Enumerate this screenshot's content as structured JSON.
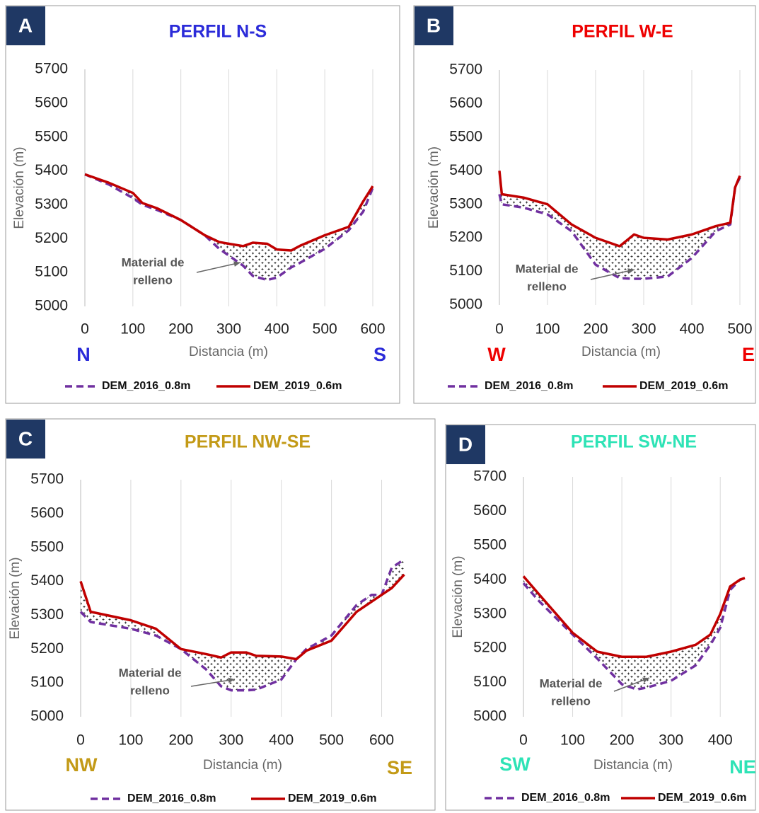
{
  "chart_data": [
    {
      "type": "line",
      "panel": "A",
      "title": "PERFIL N-S",
      "title_color": "#2b2bd9",
      "x_label": "Distancia (m)",
      "y_label": "Elevación (m)",
      "direction_labels": [
        "N",
        "S"
      ],
      "annotation": [
        "Material de",
        "relleno"
      ],
      "x": [
        0,
        50,
        100,
        120,
        150,
        200,
        250,
        280,
        300,
        330,
        350,
        380,
        400,
        430,
        450,
        500,
        550,
        580,
        600
      ],
      "series": [
        {
          "name": "DEM_2016_0.8m",
          "color": "#7030a0",
          "dashed": true,
          "values": [
            5390,
            5360,
            5320,
            5300,
            5285,
            5255,
            5210,
            5170,
            5150,
            5120,
            5090,
            5078,
            5085,
            5115,
            5130,
            5170,
            5225,
            5280,
            5350
          ]
        },
        {
          "name": "DEM_2019_0.6m",
          "color": "#c00000",
          "dashed": false,
          "values": [
            5390,
            5365,
            5335,
            5305,
            5290,
            5255,
            5210,
            5190,
            5185,
            5178,
            5188,
            5185,
            5168,
            5165,
            5180,
            5210,
            5235,
            5310,
            5355
          ]
        }
      ],
      "xlim": [
        0,
        600
      ],
      "xticks": [
        0,
        100,
        200,
        300,
        400,
        500,
        600
      ],
      "ylim": [
        5000,
        5700
      ],
      "yticks": [
        5000,
        5100,
        5200,
        5300,
        5400,
        5500,
        5600,
        5700
      ],
      "grid": "x"
    },
    {
      "type": "line",
      "panel": "B",
      "title": "PERFIL W-E",
      "title_color": "#ee0000",
      "x_label": "Distancia (m)",
      "y_label": "Elevación (m)",
      "direction_labels": [
        "W",
        "E"
      ],
      "annotation": [
        "Material de",
        "relleno"
      ],
      "x": [
        0,
        5,
        50,
        100,
        150,
        200,
        250,
        280,
        300,
        350,
        400,
        450,
        480,
        490,
        500
      ],
      "series": [
        {
          "name": "DEM_2016_0.8m",
          "color": "#7030a0",
          "dashed": true,
          "values": [
            5330,
            5300,
            5290,
            5270,
            5220,
            5120,
            5080,
            5078,
            5078,
            5085,
            5140,
            5220,
            5240,
            5350,
            5380
          ]
        },
        {
          "name": "DEM_2019_0.6m",
          "color": "#c00000",
          "dashed": false,
          "values": [
            5400,
            5330,
            5320,
            5300,
            5240,
            5200,
            5175,
            5210,
            5200,
            5195,
            5210,
            5235,
            5245,
            5350,
            5385
          ]
        }
      ],
      "xlim": [
        0,
        500
      ],
      "xticks": [
        0,
        100,
        200,
        300,
        400,
        500
      ],
      "ylim": [
        5000,
        5700
      ],
      "yticks": [
        5000,
        5100,
        5200,
        5300,
        5400,
        5500,
        5600,
        5700
      ],
      "grid": "x"
    },
    {
      "type": "line",
      "panel": "C",
      "title": "PERFIL NW-SE",
      "title_color": "#c39a17",
      "x_label": "Distancia (m)",
      "y_label": "Elevación (m)",
      "direction_labels": [
        "NW",
        "SE"
      ],
      "annotation": [
        "Material de",
        "relleno"
      ],
      "x": [
        0,
        20,
        100,
        150,
        200,
        250,
        280,
        300,
        330,
        350,
        400,
        430,
        450,
        500,
        550,
        580,
        600,
        620,
        645
      ],
      "series": [
        {
          "name": "DEM_2016_0.8m",
          "color": "#7030a0",
          "dashed": true,
          "values": [
            5310,
            5280,
            5260,
            5240,
            5200,
            5140,
            5090,
            5078,
            5078,
            5080,
            5110,
            5170,
            5200,
            5240,
            5330,
            5360,
            5360,
            5440,
            5465
          ]
        },
        {
          "name": "DEM_2019_0.6m",
          "color": "#c00000",
          "dashed": false,
          "values": [
            5400,
            5310,
            5285,
            5260,
            5200,
            5185,
            5175,
            5190,
            5190,
            5180,
            5178,
            5170,
            5195,
            5225,
            5310,
            5340,
            5360,
            5380,
            5420
          ]
        }
      ],
      "xlim": [
        0,
        650
      ],
      "xticks": [
        0,
        100,
        200,
        300,
        400,
        500,
        600
      ],
      "ylim": [
        5000,
        5700
      ],
      "yticks": [
        5000,
        5100,
        5200,
        5300,
        5400,
        5500,
        5600,
        5700
      ],
      "grid": "x"
    },
    {
      "type": "line",
      "panel": "D",
      "title": "PERFIL SW-NE",
      "title_color": "#2ee3b6",
      "x_label": "Distancia (m)",
      "y_label": "Elevación (m)",
      "direction_labels": [
        "SW",
        "NE"
      ],
      "annotation": [
        "Material de",
        "relleno"
      ],
      "x": [
        0,
        30,
        100,
        150,
        200,
        230,
        250,
        300,
        350,
        380,
        400,
        420,
        440,
        450
      ],
      "series": [
        {
          "name": "DEM_2016_0.8m",
          "color": "#7030a0",
          "dashed": true,
          "values": [
            5390,
            5340,
            5240,
            5170,
            5095,
            5080,
            5085,
            5105,
            5150,
            5210,
            5260,
            5370,
            5400,
            5405
          ]
        },
        {
          "name": "DEM_2019_0.6m",
          "color": "#c00000",
          "dashed": false,
          "values": [
            5410,
            5360,
            5245,
            5190,
            5175,
            5175,
            5175,
            5190,
            5210,
            5240,
            5300,
            5380,
            5400,
            5405
          ]
        }
      ],
      "xlim": [
        0,
        450
      ],
      "xticks": [
        0,
        100,
        200,
        300,
        400
      ],
      "ylim": [
        5000,
        5700
      ],
      "yticks": [
        5000,
        5100,
        5200,
        5300,
        5400,
        5500,
        5600,
        5700
      ],
      "grid": "x"
    }
  ]
}
